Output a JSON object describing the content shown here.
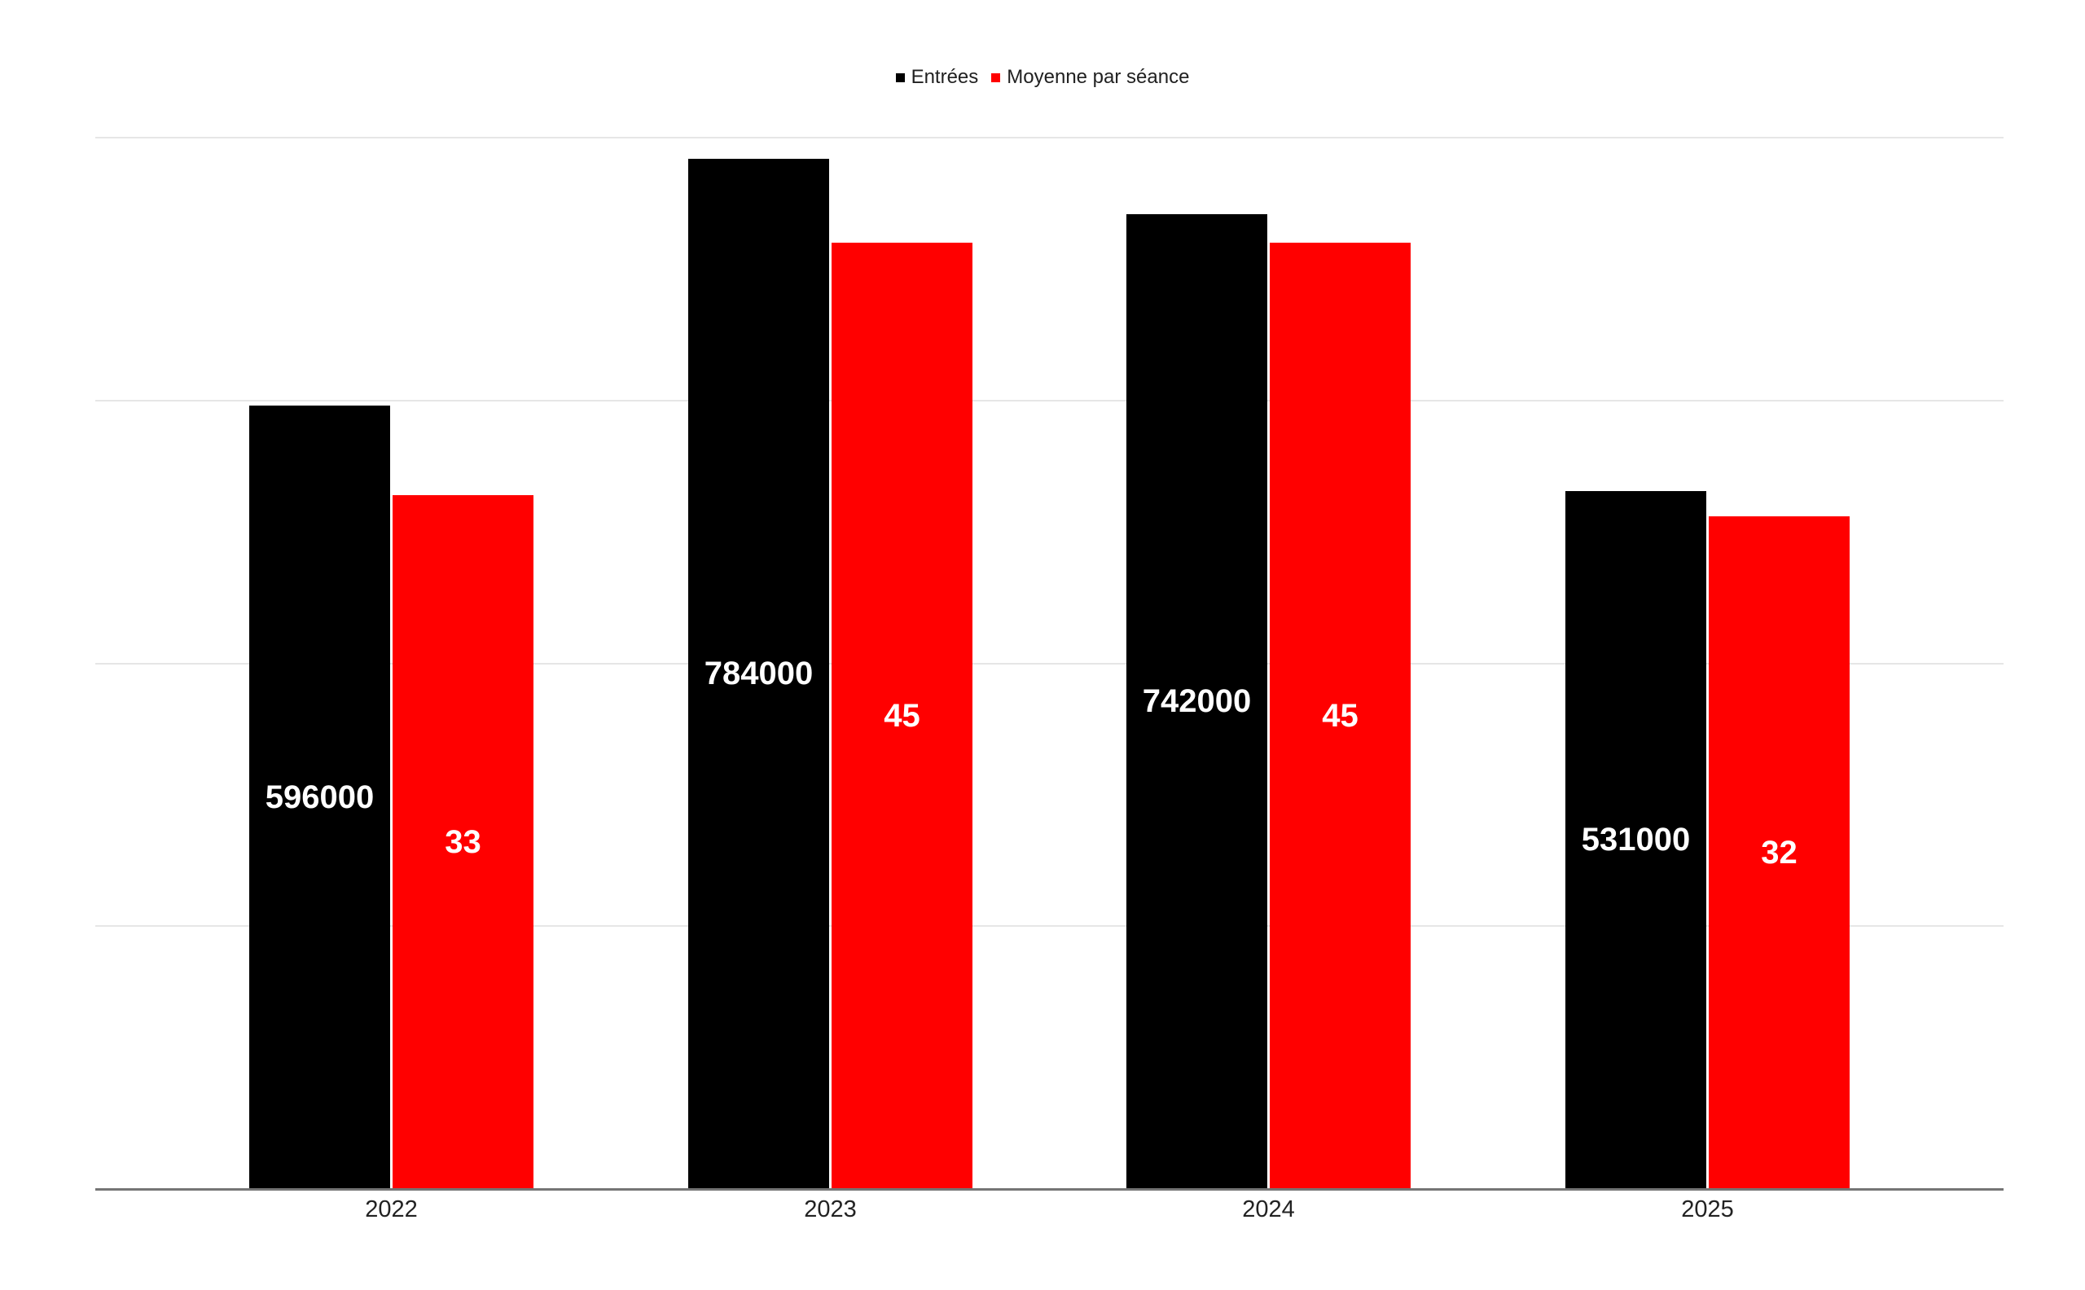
{
  "legend": {
    "items": [
      {
        "label": "Entrées",
        "color": "#000000"
      },
      {
        "label": "Moyenne par séance",
        "color": "#ff0000"
      }
    ]
  },
  "chart_data": {
    "type": "bar",
    "title": "",
    "xlabel": "",
    "ylabel": "",
    "categories": [
      "2022",
      "2023",
      "2024",
      "2025"
    ],
    "series": [
      {
        "name": "Entrées",
        "color": "#000000",
        "axis": "primary",
        "values": [
          596000,
          784000,
          742000,
          531000
        ],
        "labels": [
          "596000",
          "784000",
          "742000",
          "531000"
        ],
        "label_color": "#ffffff"
      },
      {
        "name": "Moyenne par séance",
        "color": "#ff0000",
        "axis": "secondary",
        "values": [
          33,
          45,
          45,
          32
        ],
        "labels": [
          "33",
          "45",
          "45",
          "32"
        ],
        "label_color": "#ffffff"
      }
    ],
    "ylim": [
      0,
      800000
    ],
    "y2lim": [
      0,
      50
    ],
    "gridline_values_primary": [
      200000,
      400000,
      600000,
      800000
    ],
    "axis_tick_labels_shown": false,
    "grid": true,
    "legend_position": "top-center",
    "colors": {
      "background": "#ffffff",
      "gridline": "#e6e6e6",
      "axis_line": "#757575",
      "category_label": "#222222",
      "legend_text": "#212121"
    }
  }
}
